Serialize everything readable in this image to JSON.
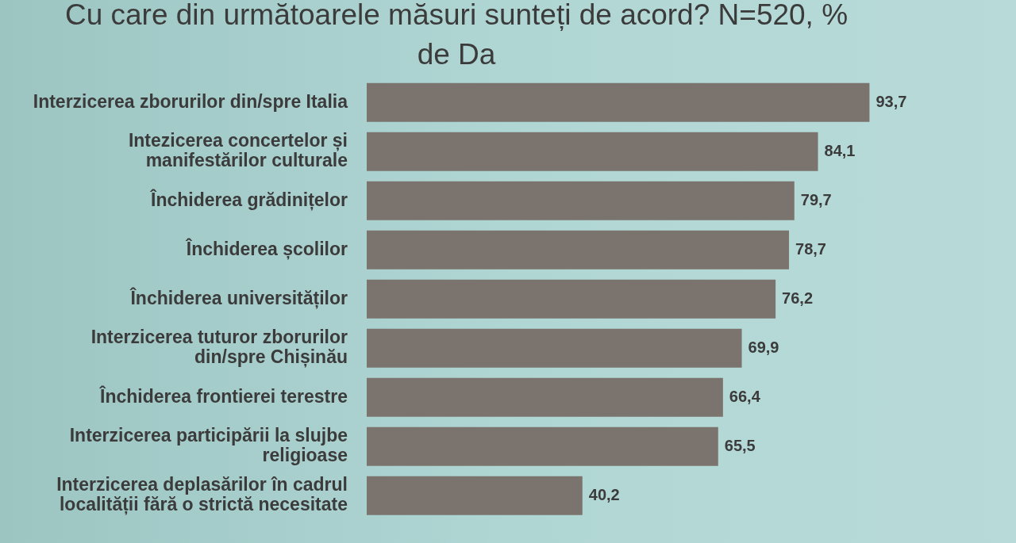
{
  "chart_data": {
    "type": "bar",
    "orientation": "horizontal",
    "title": "Cu care din următoarele măsuri sunteți de acord? N=520, % de Da",
    "categories": [
      "Interzicerea zborurilor din/spre Italia",
      "Intezicerea concertelor și manifestărilor culturale",
      "Închiderea grădinițelor",
      "Închiderea școlilor",
      "Închiderea universităților",
      "Interzicerea tuturor zborurilor din/spre Chișinău",
      "Închiderea frontierei terestre",
      "Interzicerea participării la slujbe religioase",
      "Interzicerea deplasărilor în cadrul localității fără o strictă necesitate"
    ],
    "values": [
      93.7,
      84.1,
      79.7,
      78.7,
      76.2,
      69.9,
      66.4,
      65.5,
      40.2
    ],
    "value_labels": [
      "93,7",
      "84,1",
      "79,7",
      "78,7",
      "76,2",
      "69,9",
      "66,4",
      "65,5",
      "40,2"
    ],
    "color": "#7b746e"
  }
}
